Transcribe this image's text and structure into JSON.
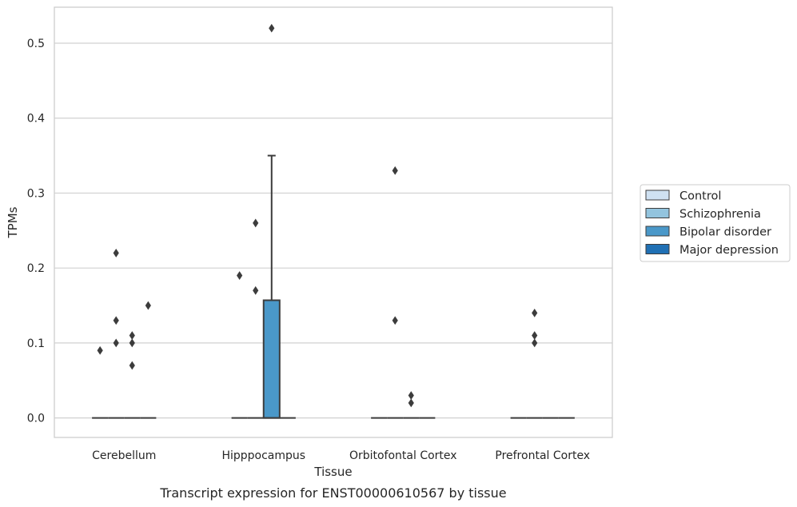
{
  "chart_data": {
    "type": "box",
    "xlabel": "Tissue",
    "ylabel": "TPMs",
    "caption": "Transcript expression for ENST00000610567 by tissue",
    "ylim": [
      -0.026,
      0.548
    ],
    "yticks": [
      0.0,
      0.1,
      0.2,
      0.3,
      0.4,
      0.5
    ],
    "ytick_labels": [
      "0.0",
      "0.1",
      "0.2",
      "0.3",
      "0.4",
      "0.5"
    ],
    "grid": "horizontal",
    "legend_position": "right",
    "categories": [
      "Cerebellum",
      "Hipppocampus",
      "Orbitofontal Cortex",
      "Prefrontal Cortex"
    ],
    "series": [
      {
        "name": "Control",
        "color": "#cfe1f2",
        "boxes": [
          {
            "q1": 0,
            "median": 0,
            "q3": 0,
            "whisker_low": 0,
            "whisker_high": 0,
            "outliers": [
              0.09
            ]
          },
          {
            "q1": 0,
            "median": 0,
            "q3": 0,
            "whisker_low": 0,
            "whisker_high": 0,
            "outliers": [
              0.19
            ]
          },
          {
            "q1": 0,
            "median": 0,
            "q3": 0,
            "whisker_low": 0,
            "whisker_high": 0,
            "outliers": []
          },
          {
            "q1": 0,
            "median": 0,
            "q3": 0,
            "whisker_low": 0,
            "whisker_high": 0,
            "outliers": []
          }
        ]
      },
      {
        "name": "Schizophrenia",
        "color": "#93c4de",
        "boxes": [
          {
            "q1": 0,
            "median": 0,
            "q3": 0,
            "whisker_low": 0,
            "whisker_high": 0,
            "outliers": [
              0.22,
              0.13,
              0.1
            ]
          },
          {
            "q1": 0,
            "median": 0,
            "q3": 0,
            "whisker_low": 0,
            "whisker_high": 0,
            "outliers": [
              0.26,
              0.17
            ]
          },
          {
            "q1": 0,
            "median": 0,
            "q3": 0,
            "whisker_low": 0,
            "whisker_high": 0,
            "outliers": [
              0.33,
              0.13
            ]
          },
          {
            "q1": 0,
            "median": 0,
            "q3": 0,
            "whisker_low": 0,
            "whisker_high": 0,
            "outliers": [
              0.14,
              0.11,
              0.1
            ]
          }
        ]
      },
      {
        "name": "Bipolar disorder",
        "color": "#4a98c9",
        "boxes": [
          {
            "q1": 0,
            "median": 0,
            "q3": 0,
            "whisker_low": 0,
            "whisker_high": 0,
            "outliers": [
              0.11,
              0.1,
              0.07
            ]
          },
          {
            "q1": 0,
            "median": 0,
            "q3": 0.157,
            "whisker_low": 0,
            "whisker_high": 0.35,
            "outliers": [
              0.52
            ]
          },
          {
            "q1": 0,
            "median": 0,
            "q3": 0,
            "whisker_low": 0,
            "whisker_high": 0,
            "outliers": [
              0.03,
              0.02
            ]
          },
          {
            "q1": 0,
            "median": 0,
            "q3": 0,
            "whisker_low": 0,
            "whisker_high": 0,
            "outliers": []
          }
        ]
      },
      {
        "name": "Major depression",
        "color": "#2070b4",
        "boxes": [
          {
            "q1": 0,
            "median": 0,
            "q3": 0,
            "whisker_low": 0,
            "whisker_high": 0,
            "outliers": [
              0.15
            ]
          },
          {
            "q1": 0,
            "median": 0,
            "q3": 0,
            "whisker_low": 0,
            "whisker_high": 0,
            "outliers": []
          },
          {
            "q1": 0,
            "median": 0,
            "q3": 0,
            "whisker_low": 0,
            "whisker_high": 0,
            "outliers": []
          },
          {
            "q1": 0,
            "median": 0,
            "q3": 0,
            "whisker_low": 0,
            "whisker_high": 0,
            "outliers": []
          }
        ]
      }
    ]
  }
}
